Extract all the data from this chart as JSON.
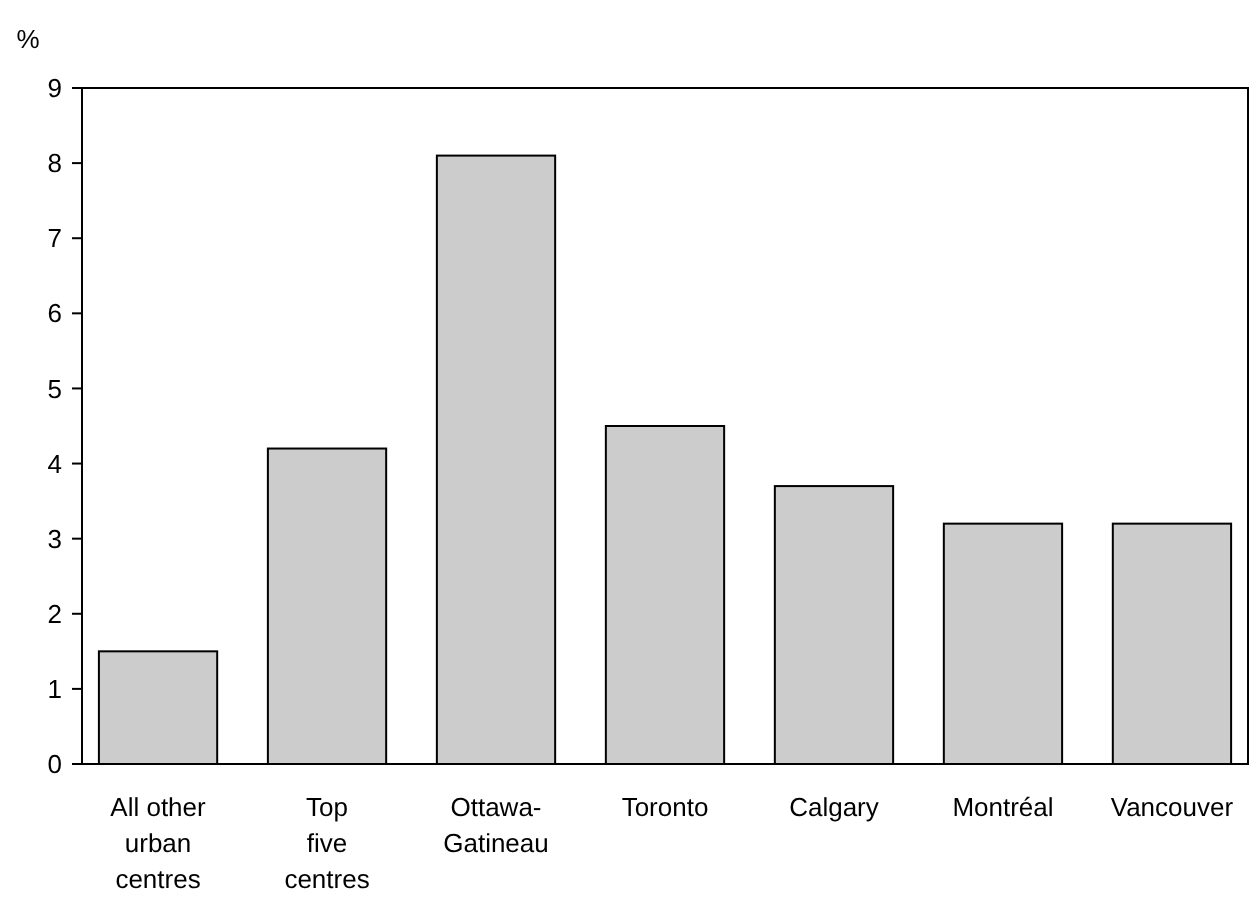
{
  "chart_data": {
    "type": "bar",
    "ylabel": "%",
    "categories": [
      "All other\nurban\ncentres",
      "Top\nfive\ncentres",
      "Ottawa-\nGatineau",
      "Toronto",
      "Calgary",
      "Montréal",
      "Vancouver"
    ],
    "values": [
      1.5,
      4.2,
      8.1,
      4.5,
      3.7,
      3.2,
      3.2
    ],
    "color": "#cccccc",
    "ylim": [
      0,
      9
    ],
    "yticks": [
      0,
      1,
      2,
      3,
      4,
      5,
      6,
      7,
      8,
      9
    ],
    "grid": false
  }
}
